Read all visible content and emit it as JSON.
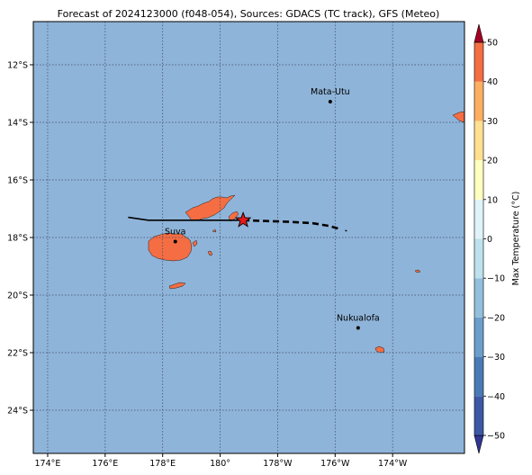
{
  "title": "Forecast of 2024123000 (f048-054), Sources: GDACS (TC track), GFS (Meteo)",
  "map": {
    "lon_range": [
      173.5,
      188.5
    ],
    "lat_range": [
      -25.5,
      -10.5
    ],
    "lat_ticks": [
      {
        "value": -12,
        "label": "12°S"
      },
      {
        "value": -14,
        "label": "14°S"
      },
      {
        "value": -16,
        "label": "16°S"
      },
      {
        "value": -18,
        "label": "18°S"
      },
      {
        "value": -20,
        "label": "20°S"
      },
      {
        "value": -22,
        "label": "22°S"
      },
      {
        "value": -24,
        "label": "24°S"
      }
    ],
    "lon_ticks": [
      {
        "value": 174,
        "label": "174°E"
      },
      {
        "value": 176,
        "label": "176°E"
      },
      {
        "value": 178,
        "label": "178°E"
      },
      {
        "value": 180,
        "label": "180°"
      },
      {
        "value": 182,
        "label": "178°W"
      },
      {
        "value": 184,
        "label": "176°W"
      },
      {
        "value": 186,
        "label": "174°W"
      }
    ],
    "gridlines": true,
    "colors": {
      "ocean": "#8fb4d9",
      "land": "#f46d43",
      "grid": "#3b4a66",
      "track_past": "#000000",
      "track_forecast": "#000000",
      "storm_marker": "#e41a1c"
    },
    "places": [
      {
        "name": "Mata-Utu",
        "lon": 183.83,
        "lat": -13.28
      },
      {
        "name": "Suva",
        "lon": 178.44,
        "lat": -18.14
      },
      {
        "name": "Nukualofa",
        "lon": 184.8,
        "lat": -21.14
      }
    ],
    "storm_position": {
      "lon": 180.8,
      "lat": -17.4
    },
    "track_past": [
      [
        176.8,
        -17.3
      ],
      [
        177.5,
        -17.4
      ],
      [
        180.8,
        -17.4
      ]
    ],
    "track_forecast": [
      [
        180.8,
        -17.4
      ],
      [
        182.3,
        -17.45
      ],
      [
        183.2,
        -17.5
      ],
      [
        183.8,
        -17.6
      ],
      [
        184.2,
        -17.72
      ]
    ],
    "track_forecast_tail": [
      [
        184.35,
        -17.75
      ],
      [
        184.45,
        -17.8
      ]
    ]
  },
  "colorbar": {
    "label": "Max Temperature (°C)",
    "min": -50,
    "max": 50,
    "step": 10,
    "tick_labels": [
      "50",
      "40",
      "30",
      "20",
      "10",
      "0",
      "−10",
      "−20",
      "−30",
      "−40",
      "−50"
    ],
    "band_colors": [
      "#313695",
      "#3d59a5",
      "#4a7ab6",
      "#6b9ecb",
      "#92c0dc",
      "#bde2ed",
      "#e0f3f8",
      "#ffffbf",
      "#fee090",
      "#fdae61",
      "#f46d43",
      "#d73027",
      "#a50026"
    ]
  }
}
